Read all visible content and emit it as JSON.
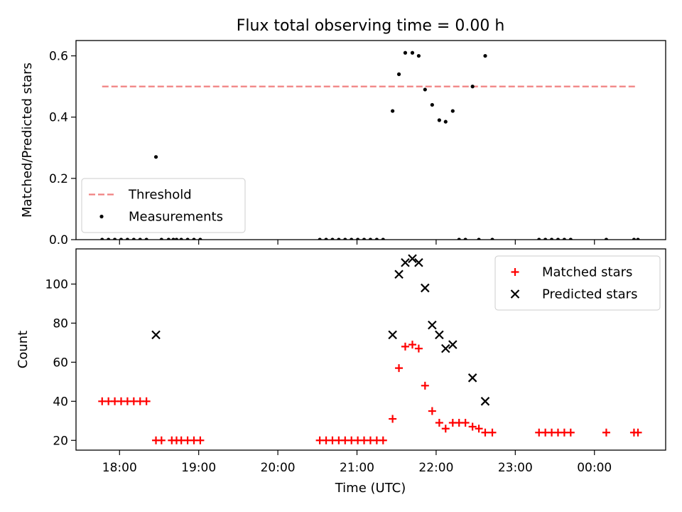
{
  "chart_data": {
    "title": "Flux total observing time = 0.00 h",
    "xlabel": "Time (UTC)",
    "x_unit": "hours UTC (values past 24 wrap to next day)",
    "xlim": [
      17.45,
      24.9
    ],
    "xticks": [
      {
        "value": 18,
        "label": "18:00"
      },
      {
        "value": 19,
        "label": "19:00"
      },
      {
        "value": 20,
        "label": "20:00"
      },
      {
        "value": 21,
        "label": "21:00"
      },
      {
        "value": 22,
        "label": "22:00"
      },
      {
        "value": 23,
        "label": "23:00"
      },
      {
        "value": 24,
        "label": "00:00"
      }
    ],
    "panels": [
      {
        "type": "scatter",
        "ylabel": "Matched/Predicted stars",
        "ylim": [
          0,
          0.65
        ],
        "yticks": [
          {
            "value": 0.0,
            "label": "0.0"
          },
          {
            "value": 0.2,
            "label": "0.2"
          },
          {
            "value": 0.4,
            "label": "0.4"
          },
          {
            "value": 0.6,
            "label": "0.6"
          }
        ],
        "legend": "lower-left",
        "series": [
          {
            "name": "Threshold",
            "kind": "line",
            "style": "dashed",
            "color": "#f08080",
            "x": [
              17.78,
              24.53
            ],
            "y": [
              0.5,
              0.5
            ]
          },
          {
            "name": "Measurements",
            "kind": "dot",
            "color": "#000000",
            "x": [
              17.78,
              17.86,
              17.94,
              18.02,
              18.1,
              18.18,
              18.26,
              18.34,
              18.46,
              18.53,
              18.62,
              18.68,
              18.72,
              18.78,
              18.86,
              18.94,
              19.02,
              20.53,
              20.61,
              20.69,
              20.77,
              20.85,
              20.93,
              21.01,
              21.09,
              21.17,
              21.25,
              21.33,
              21.45,
              21.53,
              21.61,
              21.7,
              21.78,
              21.86,
              21.95,
              22.04,
              22.12,
              22.21,
              22.29,
              22.37,
              22.46,
              22.54,
              22.62,
              22.71,
              23.3,
              23.38,
              23.46,
              23.54,
              23.62,
              23.7,
              24.15,
              24.5,
              24.55
            ],
            "y": [
              0,
              0,
              0,
              0,
              0,
              0,
              0,
              0,
              0.27,
              0,
              0,
              0,
              0,
              0,
              0,
              0,
              0,
              0,
              0,
              0,
              0,
              0,
              0,
              0,
              0,
              0,
              0,
              0,
              0.42,
              0.54,
              0.61,
              0.61,
              0.6,
              0.49,
              0.44,
              0.39,
              0.385,
              0.42,
              0,
              0,
              0.5,
              0,
              0.6,
              0,
              0,
              0,
              0,
              0,
              0,
              0,
              0,
              0,
              0
            ]
          }
        ]
      },
      {
        "type": "scatter",
        "ylabel": "Count",
        "ylim": [
          15,
          118
        ],
        "yticks": [
          {
            "value": 20,
            "label": "20"
          },
          {
            "value": 40,
            "label": "40"
          },
          {
            "value": 60,
            "label": "60"
          },
          {
            "value": 80,
            "label": "80"
          },
          {
            "value": 100,
            "label": "100"
          }
        ],
        "legend": "top-right",
        "series": [
          {
            "name": "Matched stars",
            "kind": "plus",
            "color": "#ff0000",
            "x": [
              17.78,
              17.86,
              17.94,
              18.02,
              18.1,
              18.18,
              18.26,
              18.34,
              18.46,
              18.53,
              18.66,
              18.72,
              18.78,
              18.86,
              18.94,
              19.02,
              20.53,
              20.61,
              20.69,
              20.77,
              20.85,
              20.93,
              21.01,
              21.09,
              21.17,
              21.25,
              21.33,
              21.45,
              21.53,
              21.61,
              21.7,
              21.78,
              21.86,
              21.95,
              22.04,
              22.12,
              22.21,
              22.29,
              22.37,
              22.46,
              22.54,
              22.62,
              22.71,
              23.3,
              23.38,
              23.46,
              23.54,
              23.62,
              23.7,
              24.15,
              24.5,
              24.55
            ],
            "y": [
              40,
              40,
              40,
              40,
              40,
              40,
              40,
              40,
              20,
              20,
              20,
              20,
              20,
              20,
              20,
              20,
              20,
              20,
              20,
              20,
              20,
              20,
              20,
              20,
              20,
              20,
              20,
              31,
              57,
              68,
              69,
              67,
              48,
              35,
              29,
              26,
              29,
              29,
              29,
              27,
              26,
              24,
              24,
              24,
              24,
              24,
              24,
              24,
              24,
              24,
              24,
              24
            ]
          },
          {
            "name": "Predicted stars",
            "kind": "cross",
            "color": "#000000",
            "x": [
              18.46,
              21.45,
              21.53,
              21.61,
              21.7,
              21.78,
              21.86,
              21.95,
              22.04,
              22.12,
              22.21,
              22.46,
              22.62
            ],
            "y": [
              74,
              74,
              105,
              111,
              113,
              111,
              98,
              79,
              74,
              67,
              69,
              52,
              40
            ]
          }
        ]
      }
    ]
  }
}
